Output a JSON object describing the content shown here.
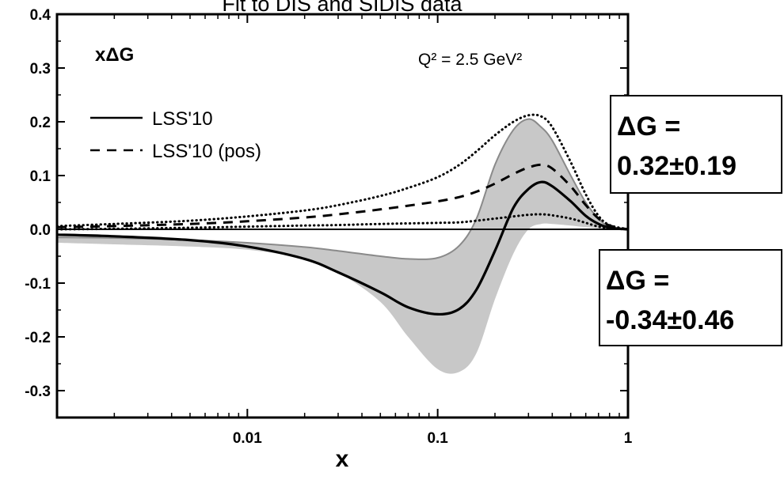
{
  "chart_data": {
    "type": "line",
    "title": "Fit to DIS and SIDIS data",
    "xlabel": "x",
    "ylabel": "",
    "xscale": "log",
    "xlim": [
      0.001,
      1
    ],
    "ylim": [
      -0.35,
      0.4
    ],
    "x_ticks": [
      {
        "value": 0.01,
        "label": "0.01"
      },
      {
        "value": 0.1,
        "label": "0.1"
      },
      {
        "value": 1,
        "label": "1"
      }
    ],
    "y_ticks": [
      {
        "value": 0.4,
        "label": "0.4"
      },
      {
        "value": 0.3,
        "label": "0.3"
      },
      {
        "value": 0.2,
        "label": "0.2"
      },
      {
        "value": 0.1,
        "label": "0.1"
      },
      {
        "value": 0.0,
        "label": "0.0"
      },
      {
        "value": -0.1,
        "label": "-0.1"
      },
      {
        "value": -0.2,
        "label": "-0.2"
      },
      {
        "value": -0.3,
        "label": "-0.3"
      }
    ],
    "panel_label": "xΔG",
    "scale_label": "Q² = 2.5 GeV²",
    "grid": false,
    "legend_position": "upper-left",
    "legend": [
      {
        "label": "LSS'10",
        "style": "solid"
      },
      {
        "label": "LSS'10 (pos)",
        "style": "dashed"
      }
    ],
    "x": [
      0.001,
      0.002,
      0.005,
      0.01,
      0.02,
      0.03,
      0.05,
      0.07,
      0.1,
      0.13,
      0.16,
      0.2,
      0.25,
      0.3,
      0.35,
      0.4,
      0.5,
      0.6,
      0.7,
      0.8,
      1.0
    ],
    "series": [
      {
        "name": "LSS'10",
        "style": "solid",
        "values": [
          -0.01,
          -0.013,
          -0.02,
          -0.032,
          -0.055,
          -0.08,
          -0.117,
          -0.145,
          -0.158,
          -0.148,
          -0.112,
          -0.04,
          0.04,
          0.075,
          0.088,
          0.08,
          0.052,
          0.025,
          0.01,
          0.003,
          0.0
        ]
      },
      {
        "name": "LSS'10 (pos)",
        "style": "dashed",
        "values": [
          0.004,
          0.006,
          0.01,
          0.015,
          0.022,
          0.028,
          0.037,
          0.044,
          0.052,
          0.06,
          0.07,
          0.085,
          0.103,
          0.115,
          0.12,
          0.113,
          0.08,
          0.045,
          0.02,
          0.007,
          0.0
        ]
      },
      {
        "style": "dotted",
        "values": [
          0.006,
          0.01,
          0.016,
          0.024,
          0.035,
          0.045,
          0.062,
          0.077,
          0.097,
          0.12,
          0.145,
          0.175,
          0.2,
          0.212,
          0.21,
          0.19,
          0.125,
          0.065,
          0.025,
          0.008,
          0.0
        ]
      },
      {
        "style": "dotted",
        "values": [
          0.0,
          0.001,
          0.003,
          0.005,
          0.007,
          0.008,
          0.01,
          0.011,
          0.012,
          0.013,
          0.016,
          0.02,
          0.024,
          0.027,
          0.028,
          0.026,
          0.02,
          0.012,
          0.005,
          0.002,
          0.0
        ]
      }
    ],
    "band": {
      "color": "#c8c8c8",
      "edge_color": "#8a8a8a",
      "upper": [
        -0.015,
        -0.016,
        -0.02,
        -0.025,
        -0.033,
        -0.04,
        -0.05,
        -0.055,
        -0.053,
        -0.03,
        0.02,
        0.12,
        0.185,
        0.205,
        0.19,
        0.165,
        0.1,
        0.05,
        0.02,
        0.005,
        0.0
      ],
      "lower": [
        -0.025,
        -0.028,
        -0.032,
        -0.038,
        -0.055,
        -0.08,
        -0.135,
        -0.2,
        -0.26,
        -0.265,
        -0.23,
        -0.13,
        -0.045,
        0.0,
        0.01,
        0.01,
        0.007,
        0.004,
        0.002,
        0.001,
        0.0
      ]
    },
    "annotations": [
      {
        "lines": [
          "ΔG =",
          "0.32±0.19"
        ]
      },
      {
        "lines": [
          "ΔG =",
          "-0.34±0.46"
        ]
      }
    ]
  }
}
